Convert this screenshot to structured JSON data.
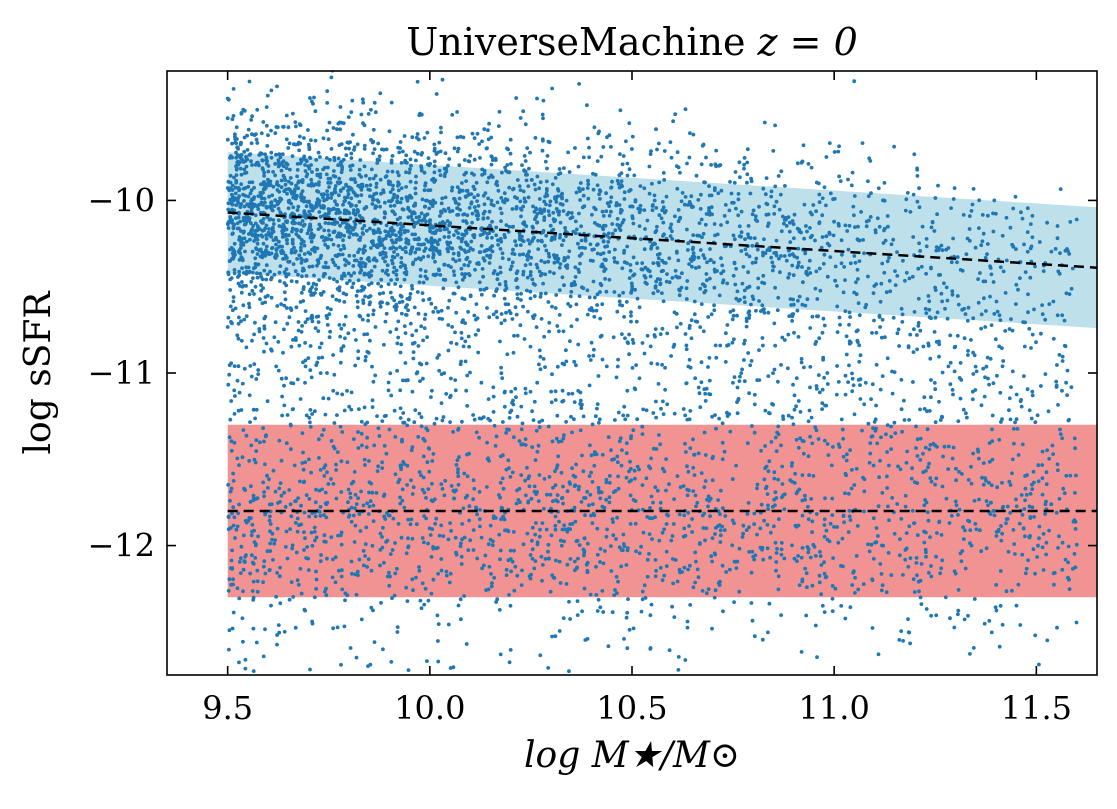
{
  "chart_data": {
    "type": "scatter",
    "title": "UniverseMachine z = 0",
    "title_parts": {
      "text": "UniverseMachine",
      "math": "z = 0"
    },
    "xlabel": "log M★/M⊙",
    "ylabel": "log sSFR",
    "xlim": [
      9.35,
      11.65
    ],
    "ylim": [
      -12.75,
      -9.25
    ],
    "xticks": [
      {
        "value": 9.5,
        "label": "9.5"
      },
      {
        "value": 10.0,
        "label": "10.0"
      },
      {
        "value": 10.5,
        "label": "10.5"
      },
      {
        "value": 11.0,
        "label": "11.0"
      },
      {
        "value": 11.5,
        "label": "11.5"
      }
    ],
    "yticks": [
      {
        "value": -10,
        "label": "−10"
      },
      {
        "value": -11,
        "label": "−11"
      },
      {
        "value": -12,
        "label": "−12"
      }
    ],
    "grid": false,
    "colors": {
      "points": "#1f77b4",
      "star_forming_band": "#add8e6",
      "quiescent_band": "#f08080",
      "fit_line": "#000000"
    },
    "bands": [
      {
        "x": [
          9.5,
          11.65
        ],
        "center": [
          -10.07,
          -10.39
        ],
        "half_width": 0.35,
        "color": "#add8e6"
      },
      {
        "x": [
          9.5,
          11.65
        ],
        "center": [
          -11.8,
          -11.8
        ],
        "half_width": 0.5,
        "color": "#f08080"
      }
    ],
    "lines": [
      {
        "style": "dashed",
        "x": [
          9.5,
          11.65
        ],
        "y": [
          -10.07,
          -10.39
        ]
      },
      {
        "style": "dashed",
        "x": [
          9.5,
          11.65
        ],
        "y": [
          -11.8,
          -11.8
        ]
      }
    ],
    "scatter_summary": {
      "star_forming": {
        "x_range": [
          9.5,
          11.6
        ],
        "y_center_at_x_min": -10.07,
        "y_center_at_x_max": -10.39,
        "spread": 0.3,
        "approx_points": 3400
      },
      "quiescent": {
        "x_range": [
          9.5,
          11.6
        ],
        "y_center": -11.8,
        "spread": 0.4,
        "approx_points": 2000
      },
      "green_valley": {
        "x_range": [
          9.5,
          11.6
        ],
        "y_range": [
          -11.3,
          -10.6
        ],
        "approx_points": 500
      }
    }
  }
}
